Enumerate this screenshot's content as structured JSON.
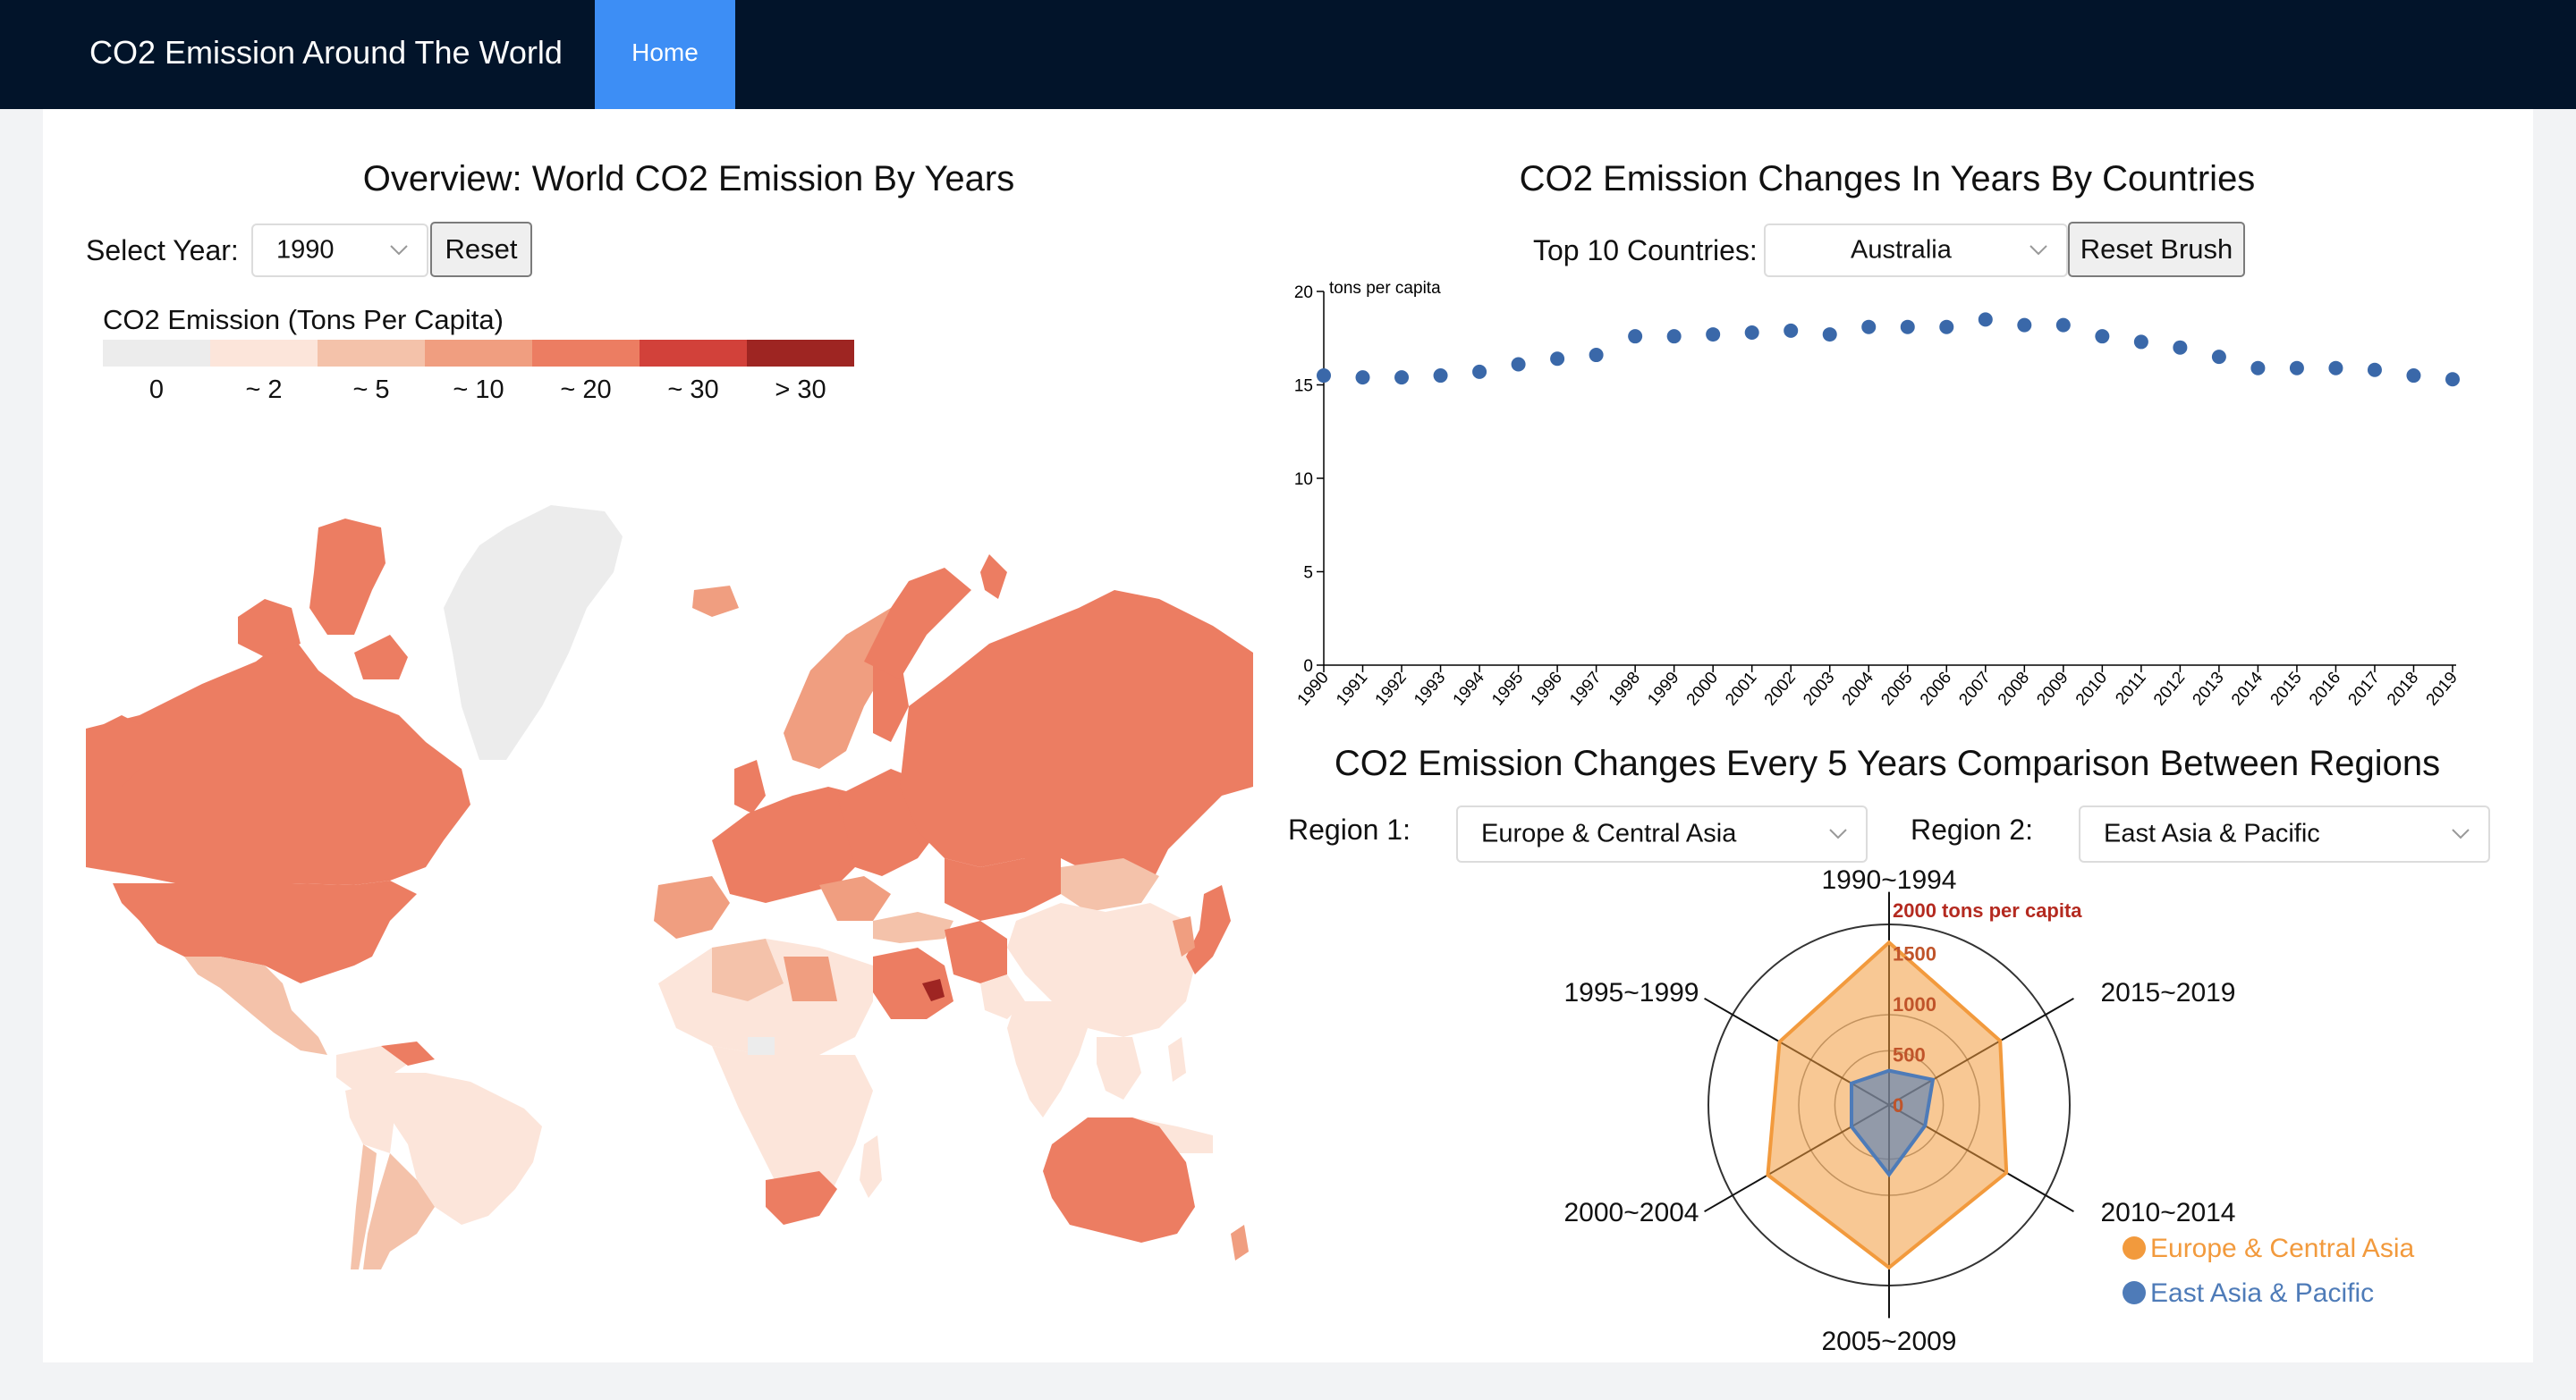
{
  "navbar": {
    "brand": "CO2 Emission Around The World",
    "home": "Home"
  },
  "overview": {
    "title": "Overview: World CO2 Emission By Years",
    "select_year_label": "Select Year:",
    "year_value": "1990",
    "reset_label": "Reset",
    "legend_title": "CO2 Emission (Tons Per Capita)",
    "legend": [
      {
        "label": "0",
        "color": "#ececec"
      },
      {
        "label": "~ 2",
        "color": "#fce5da"
      },
      {
        "label": "~ 5",
        "color": "#f4c2aa"
      },
      {
        "label": "~ 10",
        "color": "#f09e80"
      },
      {
        "label": "~ 20",
        "color": "#ec7d62"
      },
      {
        "label": "~ 30",
        "color": "#d2413a"
      },
      {
        "label": "> 30",
        "color": "#9e2522"
      }
    ]
  },
  "changes": {
    "title": "CO2 Emission Changes In Years By Countries",
    "top10_label": "Top 10 Countries:",
    "country_value": "Australia",
    "reset_brush_label": "Reset Brush"
  },
  "regions": {
    "title": "CO2 Emission Changes Every 5 Years Comparison Between Regions",
    "region1_label": "Region 1:",
    "region1_value": "Europe & Central Asia",
    "region2_label": "Region 2:",
    "region2_value": "East Asia & Pacific"
  },
  "chart_data": [
    {
      "type": "scatter",
      "title": "",
      "ylabel": "tons per capita",
      "xlabel": "",
      "ylim": [
        0,
        20
      ],
      "y_ticks": [
        0,
        5,
        10,
        15,
        20
      ],
      "series": [
        {
          "x": [
            "1990",
            "1991",
            "1992",
            "1993",
            "1994",
            "1995",
            "1996",
            "1997",
            "1998",
            "1999",
            "2000",
            "2001",
            "2002",
            "2003",
            "2004",
            "2005",
            "2006",
            "2007",
            "2008",
            "2009",
            "2010",
            "2011",
            "2012",
            "2013",
            "2014",
            "2015",
            "2016",
            "2017",
            "2018",
            "2019"
          ],
          "values": [
            15.5,
            15.4,
            15.4,
            15.5,
            15.7,
            16.1,
            16.4,
            16.6,
            17.6,
            17.6,
            17.7,
            17.8,
            17.9,
            17.7,
            18.1,
            18.1,
            18.1,
            18.5,
            18.2,
            18.2,
            17.6,
            17.3,
            17.0,
            16.5,
            15.9,
            15.9,
            15.9,
            15.8,
            15.5,
            15.3
          ],
          "color": "#3a68a9"
        }
      ],
      "grid": false
    },
    {
      "type": "radar",
      "title": "",
      "axes": [
        "1990~1994",
        "2015~2019",
        "2010~2014",
        "2005~2009",
        "2000~2004",
        "1995~1999"
      ],
      "max_label": "2000 tons per capita",
      "rlim": [
        0,
        2000
      ],
      "r_ticks": [
        0,
        500,
        1000,
        1500
      ],
      "series": [
        {
          "name": "Europe & Central Asia",
          "color": "#f29a3d",
          "values": [
            1800,
            1420,
            1500,
            1800,
            1550,
            1400
          ]
        },
        {
          "name": "East Asia & Pacific",
          "color": "#4e7bb8",
          "values": [
            380,
            560,
            460,
            770,
            480,
            480
          ]
        }
      ]
    }
  ]
}
